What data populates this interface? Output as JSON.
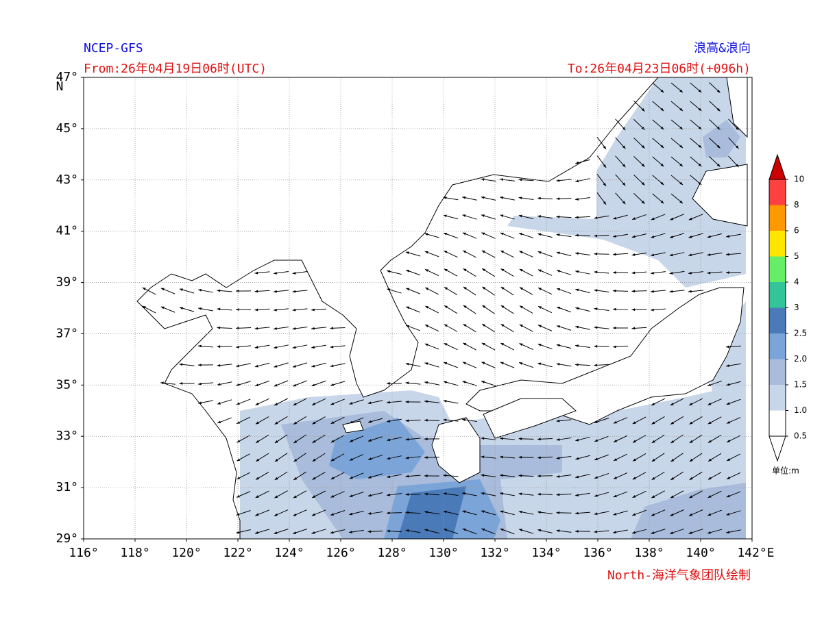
{
  "header": {
    "left_title": "NCEP-GFS",
    "right_title": "浪高&浪向",
    "from": "From:26年04月19日06时(UTC)",
    "to": "To:26年04月23日06时(+096h)"
  },
  "map": {
    "lon_range": [
      116,
      142
    ],
    "lat_range": [
      29,
      47
    ],
    "lat_unit": "N",
    "lon_unit": "E",
    "lon_ticks": [
      {
        "value": 116,
        "label": "116°"
      },
      {
        "value": 118,
        "label": "118°"
      },
      {
        "value": 120,
        "label": "120°"
      },
      {
        "value": 122,
        "label": "122°"
      },
      {
        "value": 124,
        "label": "124°"
      },
      {
        "value": 126,
        "label": "126°"
      },
      {
        "value": 128,
        "label": "128°"
      },
      {
        "value": 130,
        "label": "130°"
      },
      {
        "value": 132,
        "label": "132°"
      },
      {
        "value": 134,
        "label": "134°"
      },
      {
        "value": 136,
        "label": "136°"
      },
      {
        "value": 138,
        "label": "138°"
      },
      {
        "value": 140,
        "label": "140°"
      },
      {
        "value": 142,
        "label": "142°"
      }
    ],
    "lat_ticks": [
      {
        "value": 29,
        "label": "29°"
      },
      {
        "value": 31,
        "label": "31°"
      },
      {
        "value": 33,
        "label": "33°"
      },
      {
        "value": 35,
        "label": "35°"
      },
      {
        "value": 37,
        "label": "37°"
      },
      {
        "value": 39,
        "label": "39°"
      },
      {
        "value": 41,
        "label": "41°"
      },
      {
        "value": 43,
        "label": "43°"
      },
      {
        "value": 45,
        "label": "45°"
      },
      {
        "value": 47,
        "label": "47°"
      }
    ]
  },
  "colorbar": {
    "levels": [
      0.5,
      {
        "value": 1,
        "label": "1.0"
      },
      1.5,
      {
        "value": 2,
        "label": "2.0"
      },
      2.5,
      3,
      4,
      5,
      6,
      8,
      10
    ],
    "colors": [
      "#ffffff",
      "#c8d6ea",
      "#a9bcdb",
      "#7ba5d9",
      "#4a7ab8",
      "#33c49a",
      "#66ee66",
      "#ffe600",
      "#ff9900",
      "#ff4040"
    ],
    "under_color": "#ffffff",
    "over_color": "#cc0000",
    "unit": "单位:m"
  },
  "footer": {
    "credit": "North-海洋气象团队绘制"
  }
}
